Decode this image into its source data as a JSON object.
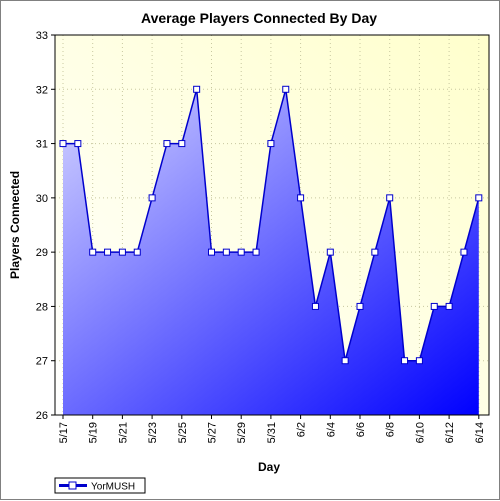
{
  "chart_data": {
    "type": "area",
    "title": "Average Players Connected By Day",
    "xlabel": "Day",
    "ylabel": "Players Connected",
    "ylim": [
      26,
      33
    ],
    "yticks": [
      26,
      27,
      28,
      29,
      30,
      31,
      32,
      33
    ],
    "categories": [
      "5/17",
      "5/18",
      "5/19",
      "5/20",
      "5/21",
      "5/22",
      "5/23",
      "5/24",
      "5/25",
      "5/26",
      "5/27",
      "5/28",
      "5/29",
      "5/30",
      "5/31",
      "6/1",
      "6/2",
      "6/3",
      "6/4",
      "6/5",
      "6/6",
      "6/7",
      "6/8",
      "6/9",
      "6/10",
      "6/11",
      "6/12",
      "6/13",
      "6/14"
    ],
    "tick_labels": [
      "5/17",
      "5/19",
      "5/21",
      "5/23",
      "5/25",
      "5/27",
      "5/29",
      "5/31",
      "6/2",
      "6/4",
      "6/6",
      "6/8",
      "6/10",
      "6/12",
      "6/14"
    ],
    "grid": true,
    "legend_position": "bottom-left",
    "series": [
      {
        "name": "YorMUSH",
        "values": [
          31,
          31,
          29,
          29,
          29,
          29,
          30,
          31,
          31,
          32,
          29,
          29,
          29,
          29,
          31,
          32,
          30,
          28,
          29,
          27,
          28,
          29,
          30,
          27,
          27,
          28,
          28,
          29,
          30
        ]
      }
    ],
    "colors": {
      "plot_bg_top": "#ffffcc",
      "plot_bg_bottom": "#ffffff",
      "line": "#0000cc",
      "fill_light": "#d4d4ff",
      "fill_dark": "#0000ff",
      "marker_fill": "#ffffff",
      "grid": "#c8c8a0"
    }
  }
}
